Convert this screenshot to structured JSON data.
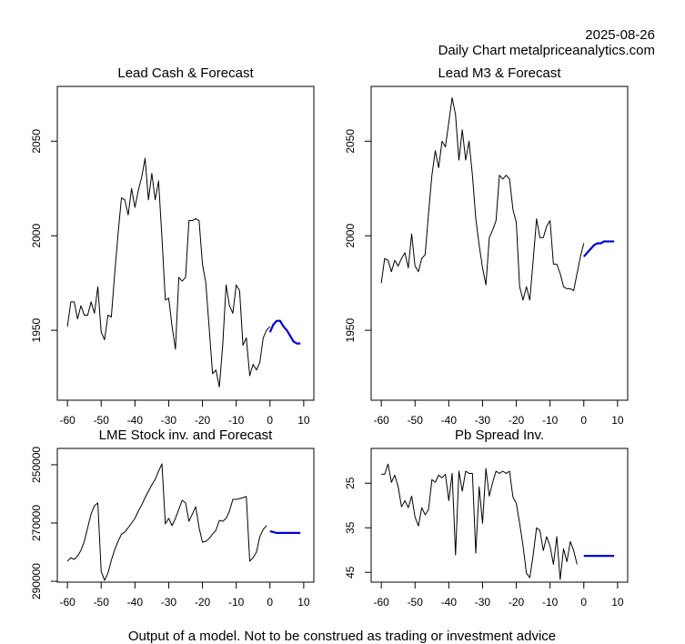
{
  "header": {
    "date": "2025-08-26",
    "source": "Daily Chart metalpriceanalytics.com"
  },
  "footer": "Output of a model. Not to be construed as trading or investment advice",
  "chart_data": [
    {
      "type": "line",
      "title": "Lead Cash & Forecast",
      "xlim": [
        -63,
        13
      ],
      "xticks": [
        -60,
        -50,
        -40,
        -30,
        -20,
        -10,
        0,
        10
      ],
      "ylim": [
        1913,
        2079
      ],
      "yticks": [
        1950,
        2000,
        2050
      ],
      "series": [
        {
          "color": "#000000",
          "x": [
            -60,
            -59,
            -58,
            -57,
            -56,
            -55,
            -54,
            -53,
            -52,
            -51,
            -50,
            -49,
            -48,
            -47,
            -46,
            -45,
            -44,
            -43,
            -42,
            -41,
            -40,
            -39,
            -38,
            -37,
            -36,
            -35,
            -34,
            -33,
            -32,
            -31,
            -30,
            -29,
            -28,
            -27,
            -26,
            -25,
            -24,
            -23,
            -22,
            -21,
            -20,
            -19,
            -18,
            -17,
            -16,
            -15,
            -14,
            -13,
            -12,
            -11,
            -10,
            -9,
            -8,
            -7,
            -6,
            -5,
            -4,
            -3,
            -2,
            -1,
            0
          ],
          "values": [
            1952,
            1965,
            1965,
            1956,
            1963,
            1958,
            1958,
            1965,
            1959,
            1973,
            1949,
            1945,
            1958,
            1957,
            1980,
            2001,
            2020,
            2019,
            2011,
            2025,
            2015,
            2024,
            2031,
            2041,
            2019,
            2033,
            2019,
            2029,
            1999,
            1966,
            1967,
            1952,
            1940,
            1978,
            1976,
            1978,
            2008,
            2008,
            2009,
            2008,
            1985,
            1975,
            1951,
            1927,
            1929,
            1920,
            1942,
            1974,
            1963,
            1959,
            1974,
            1971,
            1942,
            1946,
            1926,
            1932,
            1929,
            1933,
            1946,
            1950,
            1952
          ]
        },
        {
          "color": "#0000cd",
          "x": [
            0,
            1,
            2,
            3,
            4,
            5,
            6,
            7,
            8,
            9
          ],
          "values": [
            1949,
            1953,
            1955,
            1955,
            1952,
            1950,
            1947,
            1944,
            1943,
            1943
          ]
        }
      ]
    },
    {
      "type": "line",
      "title": "Lead M3 & Forecast",
      "xlim": [
        -63,
        13
      ],
      "xticks": [
        -60,
        -50,
        -40,
        -30,
        -20,
        -10,
        0,
        10
      ],
      "ylim": [
        1913,
        2079
      ],
      "yticks": [
        1950,
        2000,
        2050
      ],
      "series": [
        {
          "color": "#000000",
          "x": [
            -60,
            -59,
            -58,
            -57,
            -56,
            -55,
            -54,
            -53,
            -52,
            -51,
            -50,
            -49,
            -48,
            -47,
            -46,
            -45,
            -44,
            -43,
            -42,
            -41,
            -40,
            -39,
            -38,
            -37,
            -36,
            -35,
            -34,
            -33,
            -32,
            -31,
            -30,
            -29,
            -28,
            -27,
            -26,
            -25,
            -24,
            -23,
            -22,
            -21,
            -20,
            -19,
            -18,
            -17,
            -16,
            -15,
            -14,
            -13,
            -12,
            -11,
            -10,
            -9,
            -8,
            -7,
            -6,
            -5,
            -4,
            -3,
            -2,
            -1,
            0
          ],
          "values": [
            1975,
            1988,
            1987,
            1981,
            1987,
            1984,
            1988,
            1991,
            1983,
            2001,
            1984,
            1981,
            1988,
            1990,
            2012,
            2032,
            2045,
            2036,
            2050,
            2047,
            2060,
            2073,
            2064,
            2040,
            2056,
            2040,
            2050,
            2032,
            2009,
            1995,
            1983,
            1974,
            1999,
            2003,
            2008,
            2032,
            2030,
            2032,
            2030,
            2014,
            2007,
            1973,
            1966,
            1973,
            1966,
            1987,
            2009,
            1999,
            1999,
            2005,
            2008,
            1985,
            1985,
            1980,
            1973,
            1972,
            1972,
            1971,
            1980,
            1989,
            1996
          ]
        },
        {
          "color": "#0000cd",
          "x": [
            0,
            1,
            2,
            3,
            4,
            5,
            6,
            7,
            8,
            9
          ],
          "values": [
            1989,
            1991,
            1993,
            1995,
            1996,
            1996,
            1997,
            1997,
            1997,
            1997
          ]
        }
      ]
    },
    {
      "type": "line",
      "title": "LME Stock inv. and Forecast",
      "xlim": [
        -63,
        13
      ],
      "xticks": [
        -60,
        -50,
        -40,
        -30,
        -20,
        -10,
        0,
        10
      ],
      "ylim": [
        290300,
        244400
      ],
      "yticks": [
        250000,
        270000,
        290000
      ],
      "series": [
        {
          "color": "#000000",
          "x": [
            -60,
            -59,
            -58,
            -57,
            -56,
            -55,
            -54,
            -53,
            -52,
            -51,
            -50,
            -49,
            -48,
            -47,
            -46,
            -45,
            -44,
            -43,
            -42,
            -41,
            -40,
            -39,
            -38,
            -37,
            -36,
            -35,
            -34,
            -33,
            -32,
            -31,
            -30,
            -29,
            -28,
            -27,
            -26,
            -25,
            -24,
            -23,
            -22,
            -21,
            -20,
            -19,
            -18,
            -17,
            -16,
            -15,
            -14,
            -13,
            -12,
            -11,
            -10,
            -9,
            -8,
            -7,
            -6,
            -5,
            -4,
            -3,
            -2,
            -1
          ],
          "values": [
            283100,
            281900,
            282500,
            281300,
            279400,
            276300,
            271600,
            266900,
            264100,
            263100,
            286600,
            289700,
            287200,
            282800,
            279100,
            276300,
            273800,
            273100,
            271600,
            270000,
            268400,
            265900,
            263800,
            261300,
            259100,
            256900,
            255000,
            252200,
            249700,
            270300,
            268400,
            270900,
            268400,
            265300,
            262200,
            263100,
            269400,
            266900,
            264400,
            271600,
            276600,
            276300,
            275300,
            273800,
            272500,
            269100,
            269400,
            268400,
            265900,
            261900,
            261900,
            261600,
            261300,
            260900,
            283100,
            281900,
            280000,
            274700,
            272200,
            270900
          ]
        },
        {
          "color": "#0000cd",
          "x": [
            0,
            1,
            2,
            3,
            4,
            5,
            6,
            7,
            8,
            9
          ],
          "values": [
            272800,
            273100,
            273400,
            273400,
            273400,
            273400,
            273400,
            273400,
            273400,
            273400
          ]
        }
      ]
    },
    {
      "type": "line",
      "title": "Pb Spread Inv.",
      "xlim": [
        -63,
        13
      ],
      "xticks": [
        -60,
        -50,
        -40,
        -30,
        -20,
        -10,
        0,
        10
      ],
      "ylim": [
        47.2,
        17.2
      ],
      "yticks": [
        25,
        35,
        45
      ],
      "series": [
        {
          "color": "#000000",
          "x": [
            -60,
            -59,
            -58,
            -57,
            -56,
            -55,
            -54,
            -53,
            -52,
            -51,
            -50,
            -49,
            -48,
            -47,
            -46,
            -45,
            -44,
            -43,
            -42,
            -41,
            -40,
            -39,
            -38,
            -37,
            -36,
            -35,
            -34,
            -33,
            -32,
            -31,
            -30,
            -29,
            -28,
            -27,
            -26,
            -25,
            -24,
            -23,
            -22,
            -21,
            -20,
            -19,
            -18,
            -17,
            -16,
            -15,
            -14,
            -13,
            -12,
            -11,
            -10,
            -9,
            -8,
            -7,
            -6,
            -5,
            -4,
            -3,
            -2
          ],
          "values": [
            23.0,
            23.0,
            20.7,
            24.8,
            23.2,
            25.8,
            30.3,
            28.9,
            30.5,
            27.9,
            32.6,
            34.6,
            30.5,
            32.1,
            30.9,
            24.2,
            24.8,
            23.2,
            23.8,
            23.0,
            28.9,
            22.8,
            41.1,
            22.3,
            26.8,
            22.3,
            22.8,
            22.8,
            40.7,
            25.8,
            34.0,
            21.7,
            27.9,
            24.8,
            22.3,
            22.8,
            22.3,
            22.8,
            22.3,
            28.1,
            29.5,
            34.0,
            39.1,
            45.2,
            46.2,
            41.1,
            35.0,
            35.6,
            40.1,
            37.0,
            39.1,
            43.2,
            37.0,
            46.6,
            39.7,
            42.6,
            38.1,
            40.1,
            43.2
          ]
        },
        {
          "color": "#0000cd",
          "x": [
            0,
            1,
            2,
            3,
            4,
            5,
            6,
            7,
            8,
            9
          ],
          "values": [
            41.3,
            41.3,
            41.3,
            41.3,
            41.3,
            41.3,
            41.3,
            41.3,
            41.3,
            41.3
          ]
        }
      ]
    }
  ]
}
